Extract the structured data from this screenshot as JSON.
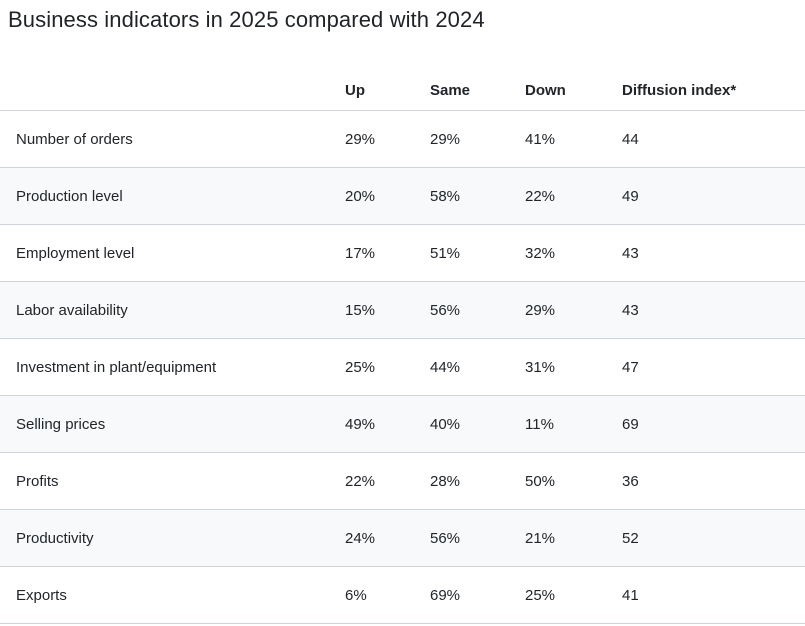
{
  "title": "Business indicators in 2025 compared with 2024",
  "colors": {
    "stripe_row_background": "#f8f9fa",
    "row_border": "#ced4da",
    "text": "#212529"
  },
  "chart_data": {
    "type": "table",
    "title": "Business indicators in 2025 compared with 2024",
    "columns": [
      "Up",
      "Same",
      "Down",
      "Diffusion index*"
    ],
    "rows": [
      {
        "label": "Number of orders",
        "up": "29%",
        "same": "29%",
        "down": "41%",
        "diffusion_index": "44"
      },
      {
        "label": "Production level",
        "up": "20%",
        "same": "58%",
        "down": "22%",
        "diffusion_index": "49"
      },
      {
        "label": "Employment level",
        "up": "17%",
        "same": "51%",
        "down": "32%",
        "diffusion_index": "43"
      },
      {
        "label": "Labor availability",
        "up": "15%",
        "same": "56%",
        "down": "29%",
        "diffusion_index": "43"
      },
      {
        "label": "Investment in plant/equipment",
        "up": "25%",
        "same": "44%",
        "down": "31%",
        "diffusion_index": "47"
      },
      {
        "label": "Selling prices",
        "up": "49%",
        "same": "40%",
        "down": "11%",
        "diffusion_index": "69"
      },
      {
        "label": "Profits",
        "up": "22%",
        "same": "28%",
        "down": "50%",
        "diffusion_index": "36"
      },
      {
        "label": "Productivity",
        "up": "24%",
        "same": "56%",
        "down": "21%",
        "diffusion_index": "52"
      },
      {
        "label": "Exports",
        "up": "6%",
        "same": "69%",
        "down": "25%",
        "diffusion_index": "41"
      }
    ]
  }
}
